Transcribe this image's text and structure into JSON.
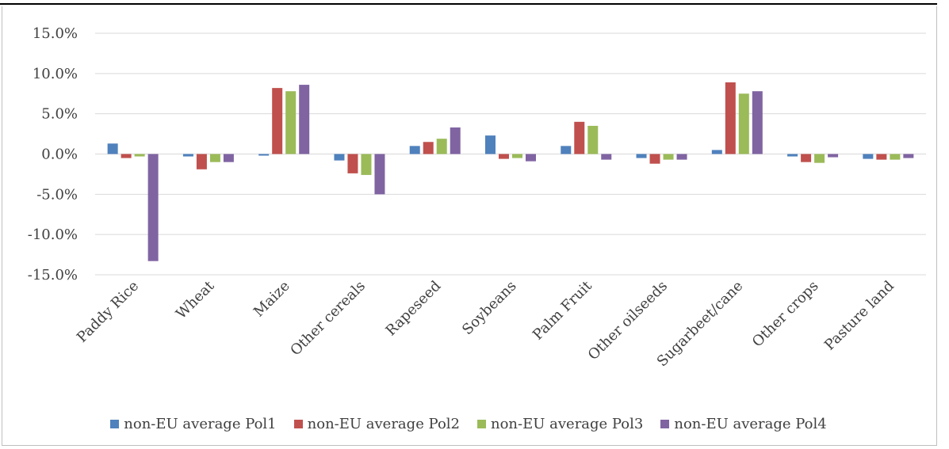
{
  "chart_data": {
    "type": "bar",
    "categories": [
      "Paddy Rice",
      "Wheat",
      "Maize",
      "Other cereals",
      "Rapeseed",
      "Soybeans",
      "Palm Fruit",
      "Other oilseeds",
      "Sugarbeet/cane",
      "Other crops",
      "Pasture land"
    ],
    "series": [
      {
        "name": "non-EU average Pol1",
        "color": "#4f81bd",
        "values": [
          1.3,
          -0.3,
          -0.2,
          -0.8,
          1.0,
          2.3,
          1.0,
          -0.5,
          0.5,
          -0.3,
          -0.6
        ]
      },
      {
        "name": "non-EU average Pol2",
        "color": "#c0504d",
        "values": [
          -0.5,
          -1.9,
          8.2,
          -2.4,
          1.5,
          -0.6,
          4.0,
          -1.2,
          8.9,
          -1.0,
          -0.7
        ]
      },
      {
        "name": "non-EU average Pol3",
        "color": "#9bbb59",
        "values": [
          -0.3,
          -1.0,
          7.8,
          -2.6,
          1.9,
          -0.5,
          3.5,
          -0.7,
          7.5,
          -1.1,
          -0.7
        ]
      },
      {
        "name": "non-EU average Pol4",
        "color": "#8064a2",
        "values": [
          -13.3,
          -1.0,
          8.6,
          -5.0,
          3.3,
          -0.9,
          -0.7,
          -0.7,
          7.8,
          -0.4,
          -0.5
        ]
      }
    ],
    "ylim": [
      -15,
      15
    ],
    "yticks": [
      15,
      10,
      5,
      0,
      -5,
      -10,
      -15
    ],
    "ytick_labels": [
      "15.0%",
      "10.0%",
      "5.0%",
      "0.0%",
      "-5.0%",
      "-10.0%",
      "-15.0%"
    ],
    "grid": true,
    "legend_position": "bottom",
    "title": "",
    "xlabel": "",
    "ylabel": ""
  }
}
